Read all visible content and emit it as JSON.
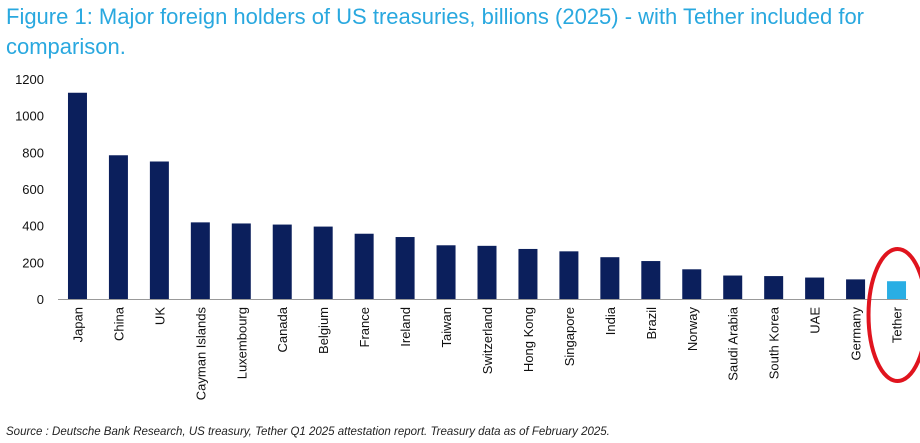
{
  "title": "Figure 1: Major foreign holders of US treasuries, billions (2025) - with Tether included for comparison.",
  "source": "Source : Deutsche Bank Research, US treasury, Tether Q1 2025 attestation report. Treasury data as of February 2025.",
  "colors": {
    "bar": "#0b1f5c",
    "highlight_bar": "#29aee4",
    "highlight_ring": "#e0141e",
    "title": "#29a8df"
  },
  "chart_data": {
    "type": "bar",
    "title": "Figure 1: Major foreign holders of US treasuries, billions (2025) - with Tether included for comparison.",
    "xlabel": "",
    "ylabel": "",
    "ylim": [
      0,
      1200
    ],
    "yticks": [
      0,
      200,
      400,
      600,
      800,
      1000,
      1200
    ],
    "grid": false,
    "legend": "none",
    "categories": [
      "Japan",
      "China",
      "UK",
      "Cayman Islands",
      "Luxembourg",
      "Canada",
      "Belgium",
      "France",
      "Ireland",
      "Taiwan",
      "Switzerland",
      "Hong Kong",
      "Singapore",
      "India",
      "Brazil",
      "Norway",
      "Saudi Arabia",
      "South Korea",
      "UAE",
      "Germany",
      "Tether"
    ],
    "values": [
      1125,
      784,
      750,
      418,
      412,
      406,
      395,
      356,
      338,
      293,
      290,
      273,
      260,
      228,
      207,
      162,
      128,
      125,
      117,
      107,
      97
    ],
    "highlighted": "Tether"
  }
}
